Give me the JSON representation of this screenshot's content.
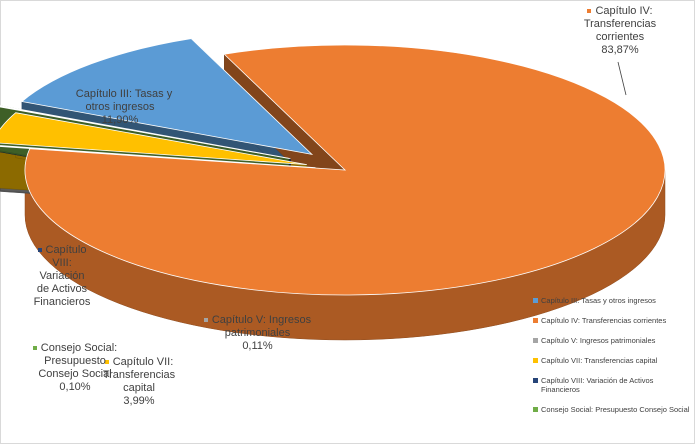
{
  "chart_data": {
    "type": "pie",
    "style": "3d-exploded",
    "slices": [
      {
        "name": "Capítulo III: Tasas y otros ingresos",
        "value": 11.9,
        "label": "11,90%",
        "color": "#5b9bd5",
        "label_lines": [
          "Capítulo III: Tasas y",
          "otros ingresos"
        ]
      },
      {
        "name": "Capítulo IV: Transferencias corrientes",
        "value": 83.87,
        "label": "83,87%",
        "color": "#ed7d31",
        "label_lines": [
          "Capítulo IV:",
          "Transferencias",
          "corrientes"
        ]
      },
      {
        "name": "Capítulo V: Ingresos patrimoniales",
        "value": 0.11,
        "label": "0,11%",
        "color": "#a5a5a5",
        "label_lines": [
          "Capítulo V: Ingresos",
          "patrimoniales"
        ]
      },
      {
        "name": "Capítulo VII: Transferencias capital",
        "value": 3.99,
        "label": "3,99%",
        "color": "#ffc000",
        "label_lines": [
          "Capítulo VII:",
          "Transferencias",
          "capital"
        ]
      },
      {
        "name": "Capítulo VIII: Variación de Activos Financieros",
        "value": 0.03,
        "label": "",
        "color": "#264478",
        "label_lines": [
          "Capítulo",
          "VIII:",
          "Variación",
          "de Activos",
          "Financieros"
        ]
      },
      {
        "name": "Consejo Social: Presupuesto Consejo Social",
        "value": 0.1,
        "label": "0,10%",
        "color": "#70ad47",
        "label_lines": [
          "Consejo Social:",
          "Presupuesto",
          "Consejo Social"
        ]
      }
    ],
    "legend": {
      "position": "right",
      "entries": [
        "Capítulo III: Tasas y otros ingresos",
        "Capítulo IV: Transferencias corrientes",
        "Capítulo V: Ingresos patrimoniales",
        "Capítulo VII: Transferencias capital",
        "Capítulo VIII: Variación de Activos Financieros",
        "Consejo Social: Presupuesto Consejo Social"
      ]
    }
  }
}
